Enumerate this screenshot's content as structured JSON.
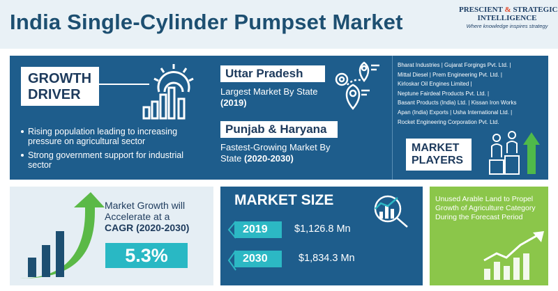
{
  "title": "India Single-Cylinder Pumpset Market",
  "logo": {
    "line1_a": "PRESCIENT",
    "line1_amp": "&",
    "line1_b": "STRATEGIC",
    "line2": "INTELLIGENCE",
    "tagline": "Where knowledge inspires strategy"
  },
  "growth_driver": {
    "heading_line1": "GROWTH",
    "heading_line2": "DRIVER",
    "bullets": [
      "Rising population leading to increasing pressure on agricultural sector",
      "Strong government support for industrial sector"
    ]
  },
  "largest_state": {
    "name": "Uttar Pradesh",
    "desc": "Largest Market By State",
    "period": "(2019)"
  },
  "fastest_state": {
    "name": "Punjab & Haryana",
    "desc": "Fastest-Growing Market By State",
    "period": "(2020-2030)"
  },
  "players": {
    "lines": [
      "Bharat Industries | Gujarat Forgings Pvt. Ltd. |",
      "Mittal Diesel | Prem Engineering Pvt. Ltd. |",
      "Kirloskar Oil Engines Limited |",
      "Neptune Fairdeal Products Pvt. Ltd. |",
      "Basant Products (India) Ltd. | Kissan Iron Works",
      "Apan (India) Exports | Usha International Ltd. |",
      "Rocket Engineering Corporation Pvt. Ltd."
    ],
    "heading_line1": "MARKET",
    "heading_line2": "PLAYERS"
  },
  "cagr": {
    "line1": "Market Growth will",
    "line2": "Accelerate at a",
    "line3": "CAGR (2020-2030)",
    "value": "5.3%"
  },
  "market_size": {
    "heading": "MARKET SIZE",
    "rows": [
      {
        "year": "2019",
        "value": "$1,126.8 Mn"
      },
      {
        "year": "2030",
        "value": "$1,834.3 Mn"
      }
    ]
  },
  "arable_land": {
    "text": "Unused Arable Land to Propel Growth of Agriculture Category During the Forecast Period"
  },
  "colors": {
    "navy": "#1d4f71",
    "panel_blue": "#1e5d8c",
    "teal": "#29b8c4",
    "green": "#8bc64a",
    "logo_red": "#e24a2b"
  }
}
